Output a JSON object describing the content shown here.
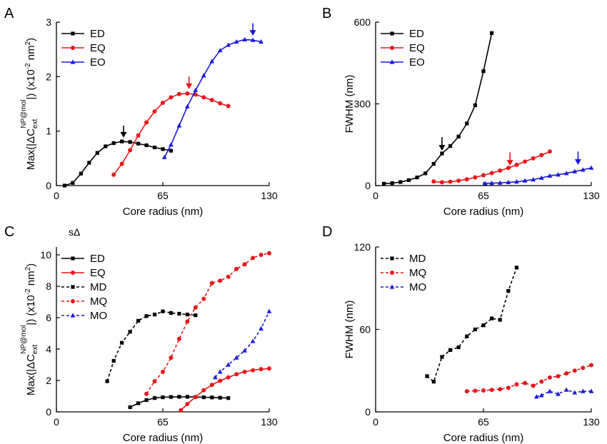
{
  "chart_data": [
    {
      "panel": "A",
      "type": "line",
      "xlabel": "Core radius (nm)",
      "ylabel_parts": [
        "Max(|ΔC",
        "ext",
        "NP@mol",
        "|)  (x10",
        "-2",
        " nm",
        "2",
        ")"
      ],
      "xlim": [
        0,
        130
      ],
      "ylim": [
        0,
        3
      ],
      "xticks": [
        "0",
        "65",
        "130"
      ],
      "yticks": [
        "0",
        "1",
        "2",
        "3"
      ],
      "legend": "top-left",
      "series": [
        {
          "name": "ED",
          "color": "#000000",
          "marker": "square",
          "dash": false,
          "x": [
            5,
            10,
            15,
            20,
            25,
            30,
            35,
            40,
            45,
            50,
            55,
            60,
            65,
            70
          ],
          "y": [
            0.0,
            0.05,
            0.22,
            0.42,
            0.6,
            0.72,
            0.78,
            0.81,
            0.8,
            0.77,
            0.74,
            0.7,
            0.67,
            0.64
          ]
        },
        {
          "name": "EQ",
          "color": "#e8171b",
          "marker": "circle",
          "dash": false,
          "x": [
            35,
            40,
            45,
            50,
            55,
            60,
            65,
            70,
            75,
            80,
            85,
            90,
            95,
            100,
            105
          ],
          "y": [
            0.2,
            0.4,
            0.65,
            0.92,
            1.16,
            1.36,
            1.52,
            1.62,
            1.68,
            1.69,
            1.67,
            1.62,
            1.57,
            1.51,
            1.46
          ]
        },
        {
          "name": "EO",
          "color": "#1a1adb",
          "marker": "triangle",
          "dash": false,
          "x": [
            66,
            70,
            75,
            80,
            85,
            90,
            95,
            100,
            105,
            110,
            115,
            120,
            125
          ],
          "y": [
            0.52,
            0.75,
            1.1,
            1.45,
            1.75,
            2.02,
            2.28,
            2.48,
            2.58,
            2.64,
            2.68,
            2.67,
            2.64
          ]
        }
      ],
      "arrows": [
        {
          "x": 41,
          "y_top": 1.1,
          "y_bottom": 0.88,
          "color": "#000000"
        },
        {
          "x": 81,
          "y_top": 2.0,
          "y_bottom": 1.77,
          "color": "#e8171b"
        },
        {
          "x": 120,
          "y_top": 2.98,
          "y_bottom": 2.75,
          "color": "#1a1adb"
        }
      ]
    },
    {
      "panel": "B",
      "type": "line",
      "xlabel": "Core radius (nm)",
      "ylabel": "FWHM (nm)",
      "xlim": [
        0,
        130
      ],
      "ylim": [
        0,
        600
      ],
      "xticks": [
        "0",
        "65",
        "130"
      ],
      "yticks": [
        "0",
        "300",
        "600"
      ],
      "legend": "top-left",
      "series": [
        {
          "name": "ED",
          "color": "#000000",
          "marker": "square",
          "dash": false,
          "x": [
            5,
            10,
            15,
            20,
            25,
            30,
            35,
            40,
            45,
            50,
            55,
            60,
            65,
            70
          ],
          "y": [
            7,
            9,
            13,
            20,
            30,
            45,
            80,
            118,
            145,
            180,
            228,
            295,
            420,
            560
          ]
        },
        {
          "name": "EQ",
          "color": "#e8171b",
          "marker": "circle",
          "dash": false,
          "x": [
            35,
            40,
            45,
            50,
            55,
            60,
            65,
            70,
            75,
            80,
            85,
            90,
            95,
            100,
            105
          ],
          "y": [
            15,
            12,
            14,
            18,
            23,
            30,
            38,
            46,
            55,
            65,
            76,
            88,
            100,
            112,
            125
          ]
        },
        {
          "name": "EO",
          "color": "#1a1adb",
          "marker": "triangle",
          "dash": false,
          "x": [
            66,
            70,
            75,
            80,
            85,
            90,
            95,
            100,
            105,
            110,
            115,
            120,
            125,
            130
          ],
          "y": [
            8,
            9,
            10,
            12,
            14,
            18,
            22,
            28,
            36,
            40,
            45,
            52,
            58,
            65
          ]
        }
      ],
      "arrows": [
        {
          "x": 40,
          "y_top": 178,
          "y_bottom": 128,
          "color": "#000000"
        },
        {
          "x": 81,
          "y_top": 122,
          "y_bottom": 73,
          "color": "#e8171b"
        },
        {
          "x": 122,
          "y_top": 125,
          "y_bottom": 76,
          "color": "#1a1adb"
        }
      ]
    },
    {
      "panel": "C",
      "type": "line",
      "xlabel": "Core radius (nm)",
      "ylabel_parts": [
        "Max(|ΔC",
        "ext",
        "NP@mol",
        "|)  (x10",
        "-2",
        " nm",
        "2",
        ")"
      ],
      "annotation": "sΔ",
      "xlim": [
        0,
        130
      ],
      "ylim": [
        0,
        10.5
      ],
      "xticks": [
        "0",
        "65",
        "130"
      ],
      "yticks": [
        "0",
        "2",
        "4",
        "6",
        "8",
        "10"
      ],
      "legend": "top-left",
      "series": [
        {
          "name": "ED",
          "color": "#000000",
          "marker": "square",
          "dash": false,
          "x": [
            45,
            50,
            55,
            60,
            65,
            70,
            75,
            80,
            85,
            90,
            95,
            100,
            105
          ],
          "y": [
            0.3,
            0.55,
            0.75,
            0.88,
            0.93,
            0.95,
            0.96,
            0.96,
            0.95,
            0.93,
            0.92,
            0.9,
            0.88
          ]
        },
        {
          "name": "EQ",
          "color": "#e8171b",
          "marker": "circle",
          "dash": false,
          "x": [
            76,
            80,
            85,
            90,
            95,
            100,
            105,
            110,
            115,
            120,
            125,
            130
          ],
          "y": [
            0.1,
            0.5,
            0.95,
            1.38,
            1.72,
            1.98,
            2.2,
            2.4,
            2.55,
            2.65,
            2.72,
            2.76
          ]
        },
        {
          "name": "MD",
          "color": "#000000",
          "marker": "square",
          "dash": true,
          "x": [
            31,
            35,
            40,
            45,
            50,
            55,
            60,
            65,
            70,
            75,
            80,
            85
          ],
          "y": [
            1.95,
            3.25,
            4.4,
            5.1,
            5.8,
            6.1,
            6.2,
            6.4,
            6.3,
            6.25,
            6.2,
            6.15
          ]
        },
        {
          "name": "MQ",
          "color": "#e8171b",
          "marker": "circle",
          "dash": true,
          "x": [
            55,
            60,
            65,
            70,
            75,
            80,
            85,
            90,
            95,
            100,
            105,
            110,
            115,
            120,
            125,
            130
          ],
          "y": [
            1.15,
            1.95,
            2.55,
            3.45,
            4.65,
            5.75,
            6.65,
            7.2,
            8.2,
            8.35,
            8.6,
            9.1,
            9.4,
            9.8,
            10.0,
            10.1
          ]
        },
        {
          "name": "MO",
          "color": "#1a1adb",
          "marker": "triangle",
          "dash": true,
          "x": [
            97,
            100,
            105,
            110,
            115,
            120,
            125,
            130
          ],
          "y": [
            2.2,
            2.55,
            3.0,
            3.45,
            3.9,
            4.5,
            5.3,
            6.4
          ]
        }
      ]
    },
    {
      "panel": "D",
      "type": "line",
      "xlabel": "Core radius (nm)",
      "ylabel": "FWHM (nm)",
      "xlim": [
        0,
        130
      ],
      "ylim": [
        0,
        120
      ],
      "xticks": [
        "0",
        "65",
        "130"
      ],
      "yticks": [
        "0",
        "60",
        "120"
      ],
      "legend": "top-left",
      "series": [
        {
          "name": "MD",
          "color": "#000000",
          "marker": "square",
          "dash": true,
          "x": [
            31,
            35,
            40,
            45,
            50,
            55,
            60,
            65,
            70,
            75,
            80,
            85
          ],
          "y": [
            26,
            22,
            40,
            45,
            47,
            55,
            60,
            63,
            68,
            67,
            88,
            105
          ]
        },
        {
          "name": "MQ",
          "color": "#e8171b",
          "marker": "circle",
          "dash": true,
          "x": [
            55,
            60,
            65,
            70,
            75,
            80,
            85,
            90,
            95,
            100,
            105,
            110,
            115,
            120,
            125,
            130
          ],
          "y": [
            15,
            15.3,
            15.6,
            16,
            16.5,
            17.5,
            20,
            21,
            19,
            22,
            25,
            26,
            28,
            30,
            32,
            34
          ]
        },
        {
          "name": "MO",
          "color": "#1a1adb",
          "marker": "triangle",
          "dash": true,
          "x": [
            97,
            100,
            105,
            110,
            115,
            120,
            125,
            130
          ],
          "y": [
            11,
            12,
            15,
            13,
            16,
            14,
            15,
            15
          ]
        }
      ]
    }
  ]
}
